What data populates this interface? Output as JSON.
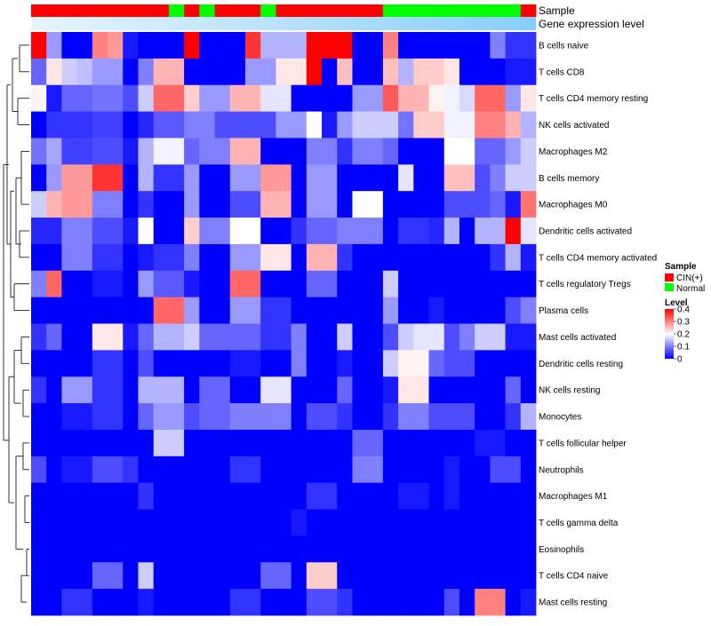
{
  "chart_data": {
    "type": "heatmap",
    "annotation_rows": [
      "Sample",
      "Gene expression level"
    ],
    "rows": [
      "B cells naive",
      "T cells CD8",
      "T cells CD4 memory resting",
      "NK cells activated",
      "Macrophages M2",
      "B cells memory",
      "Macrophages M0",
      "Dendritic cells activated",
      "T cells CD4 memory activated",
      "T cells regulatory  Tregs",
      "Plasma cells",
      "Mast cells activated",
      "Dendritic cells resting",
      "NK cells resting",
      "Monocytes",
      "T cells follicular helper",
      "Neutrophils",
      "Macrophages M1",
      "T cells gamma delta",
      "Eosinophils",
      "T cells CD4 naive",
      "Mast cells resting"
    ],
    "sample_groups": [
      "CIN(+)",
      "CIN(+)",
      "CIN(+)",
      "CIN(+)",
      "CIN(+)",
      "CIN(+)",
      "CIN(+)",
      "CIN(+)",
      "CIN(+)",
      "Normal",
      "CIN(+)",
      "Normal",
      "CIN(+)",
      "CIN(+)",
      "CIN(+)",
      "Normal",
      "CIN(+)",
      "CIN(+)",
      "CIN(+)",
      "CIN(+)",
      "CIN(+)",
      "CIN(+)",
      "CIN(+)",
      "Normal",
      "Normal",
      "Normal",
      "Normal",
      "Normal",
      "Normal",
      "Normal",
      "Normal",
      "Normal",
      "CIN(+)"
    ],
    "values": [
      [
        0.4,
        0.12,
        0.0,
        0.0,
        0.3,
        0.28,
        0.02,
        0.0,
        0.0,
        0.0,
        0.4,
        0.0,
        0.0,
        0.0,
        0.36,
        0.14,
        0.14,
        0.14,
        0.4,
        0.4,
        0.4,
        0.0,
        0.0,
        0.3,
        0.0,
        0.0,
        0.0,
        0.0,
        0.0,
        0.0,
        0.1,
        0.04,
        0.04
      ],
      [
        0.08,
        0.22,
        0.16,
        0.15,
        0.12,
        0.12,
        0.0,
        0.1,
        0.26,
        0.26,
        0.0,
        0.0,
        0.0,
        0.0,
        0.12,
        0.12,
        0.22,
        0.22,
        0.4,
        0.0,
        0.25,
        0.0,
        0.0,
        0.25,
        0.14,
        0.24,
        0.24,
        0.22,
        0.0,
        0.0,
        0.0,
        0.02,
        0.02
      ],
      [
        0.21,
        0.02,
        0.08,
        0.08,
        0.09,
        0.09,
        0.06,
        0.16,
        0.32,
        0.32,
        0.24,
        0.12,
        0.12,
        0.26,
        0.26,
        0.18,
        0.18,
        0.0,
        0.0,
        0.0,
        0.0,
        0.12,
        0.12,
        0.33,
        0.26,
        0.26,
        0.21,
        0.19,
        0.17,
        0.32,
        0.32,
        0.12,
        0.22
      ],
      [
        0.0,
        0.04,
        0.04,
        0.04,
        0.05,
        0.05,
        0.0,
        0.03,
        0.07,
        0.07,
        0.1,
        0.1,
        0.06,
        0.06,
        0.06,
        0.06,
        0.12,
        0.12,
        0.2,
        0.02,
        0.12,
        0.16,
        0.16,
        0.16,
        0.09,
        0.24,
        0.24,
        0.19,
        0.19,
        0.3,
        0.3,
        0.26,
        0.14
      ],
      [
        0.09,
        0.13,
        0.05,
        0.05,
        0.06,
        0.06,
        0.02,
        0.14,
        0.19,
        0.19,
        0.08,
        0.1,
        0.1,
        0.26,
        0.26,
        0.0,
        0.0,
        0.0,
        0.1,
        0.1,
        0.04,
        0.1,
        0.1,
        0.08,
        0.0,
        0.0,
        0.0,
        0.2,
        0.2,
        0.08,
        0.08,
        0.12,
        0.16
      ],
      [
        0.0,
        0.12,
        0.28,
        0.28,
        0.36,
        0.36,
        0.0,
        0.14,
        0.04,
        0.04,
        0.12,
        0.0,
        0.0,
        0.12,
        0.12,
        0.28,
        0.28,
        0.0,
        0.12,
        0.12,
        0.0,
        0.0,
        0.0,
        0.0,
        0.18,
        0.0,
        0.0,
        0.25,
        0.25,
        0.06,
        0.1,
        0.16,
        0.16
      ],
      [
        0.16,
        0.26,
        0.28,
        0.28,
        0.1,
        0.1,
        0.0,
        0.04,
        0.0,
        0.0,
        0.12,
        0.0,
        0.0,
        0.06,
        0.06,
        0.26,
        0.26,
        0.0,
        0.12,
        0.12,
        0.0,
        0.2,
        0.2,
        0.0,
        0.0,
        0.0,
        0.0,
        0.06,
        0.06,
        0.06,
        0.08,
        0.02,
        0.31
      ],
      [
        0.03,
        0.03,
        0.1,
        0.1,
        0.06,
        0.06,
        0.02,
        0.2,
        0.0,
        0.0,
        0.24,
        0.1,
        0.1,
        0.2,
        0.2,
        0.0,
        0.0,
        0.04,
        0.08,
        0.08,
        0.1,
        0.1,
        0.1,
        0.0,
        0.04,
        0.04,
        0.03,
        0.14,
        0.0,
        0.14,
        0.14,
        0.4,
        0.18
      ],
      [
        0.0,
        0.0,
        0.1,
        0.1,
        0.04,
        0.04,
        0.0,
        0.02,
        0.04,
        0.04,
        0.1,
        0.0,
        0.0,
        0.12,
        0.12,
        0.22,
        0.22,
        0.0,
        0.26,
        0.26,
        0.04,
        0.0,
        0.0,
        0.0,
        0.0,
        0.0,
        0.0,
        0.0,
        0.0,
        0.0,
        0.04,
        0.14,
        0.02
      ],
      [
        0.1,
        0.32,
        0.0,
        0.0,
        0.02,
        0.02,
        0.0,
        0.12,
        0.07,
        0.07,
        0.02,
        0.0,
        0.0,
        0.32,
        0.32,
        0.0,
        0.0,
        0.0,
        0.08,
        0.08,
        0.0,
        0.0,
        0.0,
        0.16,
        0.0,
        0.0,
        0.0,
        0.0,
        0.0,
        0.0,
        0.0,
        0.0,
        0.0
      ],
      [
        0.0,
        0.0,
        0.0,
        0.0,
        0.0,
        0.0,
        0.0,
        0.0,
        0.32,
        0.32,
        0.12,
        0.0,
        0.0,
        0.12,
        0.12,
        0.04,
        0.04,
        0.0,
        0.0,
        0.0,
        0.0,
        0.0,
        0.0,
        0.12,
        0.0,
        0.0,
        0.02,
        0.0,
        0.0,
        0.0,
        0.0,
        0.06,
        0.1
      ],
      [
        0.04,
        0.08,
        0.0,
        0.0,
        0.22,
        0.22,
        0.02,
        0.08,
        0.14,
        0.14,
        0.16,
        0.08,
        0.08,
        0.08,
        0.08,
        0.04,
        0.04,
        0.1,
        0.0,
        0.0,
        0.16,
        0.0,
        0.0,
        0.06,
        0.16,
        0.18,
        0.18,
        0.06,
        0.1,
        0.16,
        0.16,
        0.02,
        0.02
      ],
      [
        0.0,
        0.0,
        0.0,
        0.0,
        0.04,
        0.04,
        0.0,
        0.06,
        0.0,
        0.0,
        0.0,
        0.0,
        0.0,
        0.02,
        0.02,
        0.0,
        0.0,
        0.1,
        0.0,
        0.0,
        0.02,
        0.0,
        0.0,
        0.16,
        0.21,
        0.21,
        0.08,
        0.06,
        0.06,
        0.0,
        0.0,
        0.0,
        0.0
      ],
      [
        0.04,
        0.0,
        0.12,
        0.12,
        0.04,
        0.04,
        0.0,
        0.14,
        0.14,
        0.14,
        0.0,
        0.08,
        0.08,
        0.0,
        0.0,
        0.18,
        0.18,
        0.0,
        0.0,
        0.0,
        0.08,
        0.0,
        0.0,
        0.02,
        0.22,
        0.22,
        0.0,
        0.0,
        0.0,
        0.0,
        0.0,
        0.08,
        0.0
      ],
      [
        0.0,
        0.0,
        0.02,
        0.02,
        0.04,
        0.04,
        0.0,
        0.08,
        0.12,
        0.12,
        0.06,
        0.08,
        0.08,
        0.1,
        0.1,
        0.1,
        0.1,
        0.0,
        0.06,
        0.06,
        0.04,
        0.0,
        0.0,
        0.04,
        0.1,
        0.1,
        0.06,
        0.06,
        0.06,
        0.0,
        0.0,
        0.04,
        0.14
      ],
      [
        0.0,
        0.0,
        0.0,
        0.0,
        0.0,
        0.0,
        0.0,
        0.0,
        0.16,
        0.16,
        0.0,
        0.0,
        0.0,
        0.0,
        0.0,
        0.0,
        0.0,
        0.0,
        0.0,
        0.0,
        0.0,
        0.08,
        0.08,
        0.0,
        0.0,
        0.0,
        0.0,
        0.0,
        0.0,
        0.02,
        0.02,
        0.0,
        0.0
      ],
      [
        0.06,
        0.0,
        0.02,
        0.02,
        0.06,
        0.06,
        0.04,
        0.0,
        0.0,
        0.0,
        0.0,
        0.0,
        0.0,
        0.04,
        0.04,
        0.0,
        0.0,
        0.0,
        0.0,
        0.0,
        0.0,
        0.1,
        0.1,
        0.0,
        0.0,
        0.0,
        0.0,
        0.02,
        0.0,
        0.0,
        0.06,
        0.06,
        0.0
      ],
      [
        0.0,
        0.0,
        0.0,
        0.0,
        0.0,
        0.0,
        0.0,
        0.04,
        0.0,
        0.0,
        0.0,
        0.0,
        0.0,
        0.0,
        0.0,
        0.0,
        0.0,
        0.0,
        0.04,
        0.04,
        0.0,
        0.0,
        0.0,
        0.0,
        0.02,
        0.02,
        0.0,
        0.02,
        0.0,
        0.0,
        0.0,
        0.0,
        0.0
      ],
      [
        0.0,
        0.0,
        0.0,
        0.0,
        0.0,
        0.0,
        0.0,
        0.0,
        0.0,
        0.0,
        0.0,
        0.0,
        0.0,
        0.0,
        0.0,
        0.0,
        0.0,
        0.02,
        0.0,
        0.0,
        0.0,
        0.0,
        0.0,
        0.0,
        0.0,
        0.0,
        0.0,
        0.0,
        0.0,
        0.0,
        0.0,
        0.0,
        0.0
      ],
      [
        0.0,
        0.0,
        0.0,
        0.0,
        0.0,
        0.0,
        0.0,
        0.0,
        0.0,
        0.0,
        0.0,
        0.0,
        0.0,
        0.0,
        0.0,
        0.0,
        0.0,
        0.0,
        0.0,
        0.0,
        0.0,
        0.0,
        0.0,
        0.0,
        0.0,
        0.0,
        0.0,
        0.0,
        0.0,
        0.0,
        0.0,
        0.0,
        0.0
      ],
      [
        0.0,
        0.0,
        0.0,
        0.0,
        0.08,
        0.08,
        0.0,
        0.16,
        0.0,
        0.0,
        0.0,
        0.0,
        0.0,
        0.0,
        0.0,
        0.08,
        0.08,
        0.0,
        0.24,
        0.24,
        0.0,
        0.0,
        0.0,
        0.0,
        0.0,
        0.0,
        0.0,
        0.0,
        0.0,
        0.0,
        0.0,
        0.0,
        0.0
      ],
      [
        0.0,
        0.0,
        0.04,
        0.04,
        0.0,
        0.0,
        0.0,
        0.02,
        0.0,
        0.0,
        0.0,
        0.0,
        0.0,
        0.04,
        0.04,
        0.0,
        0.0,
        0.0,
        0.06,
        0.06,
        0.04,
        0.0,
        0.0,
        0.0,
        0.0,
        0.0,
        0.0,
        0.06,
        0.0,
        0.3,
        0.3,
        0.0,
        0.02
      ]
    ],
    "color_scale": {
      "low": "#0000ff",
      "mid": "#ffffff",
      "high": "#ff0000",
      "range": [
        0,
        0.4
      ]
    },
    "legend": {
      "sample_title": "Sample",
      "sample_entries": [
        {
          "label": "CIN(+)",
          "color": "#ff0000"
        },
        {
          "label": "Normal",
          "color": "#00ff00"
        }
      ],
      "level_title": "Level",
      "level_ticks": [
        "0.4",
        "0.3",
        "0.2",
        "0.1",
        "0"
      ],
      "level_tick_values": [
        0.4,
        0.3,
        0.2,
        0.1,
        0
      ]
    },
    "expression_gradient": {
      "from": "#e8f4fc",
      "to": "#87cefa"
    }
  }
}
